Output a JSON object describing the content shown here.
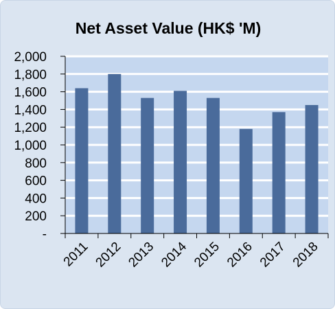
{
  "chart_data": {
    "type": "bar",
    "title": "Net Asset Value (HK$ 'M)",
    "categories": [
      "2011",
      "2012",
      "2013",
      "2014",
      "2015",
      "2016",
      "2017",
      "2018"
    ],
    "values": [
      1640,
      1800,
      1530,
      1610,
      1530,
      1180,
      1370,
      1450
    ],
    "ylim": [
      0,
      2000
    ],
    "yticks": [
      0,
      200,
      400,
      600,
      800,
      1000,
      1200,
      1400,
      1600,
      1800,
      2000
    ],
    "ytick_labels": [
      "-",
      "200",
      "400",
      "600",
      "800",
      "1,000",
      "1,200",
      "1,400",
      "1,600",
      "1,800",
      "2,000"
    ],
    "grid": true,
    "colors": {
      "bar": "#4a6b9b",
      "plot_background": "#c5d7ef",
      "frame_background": "#dbe5f1",
      "gridline": "#ffffff"
    }
  }
}
